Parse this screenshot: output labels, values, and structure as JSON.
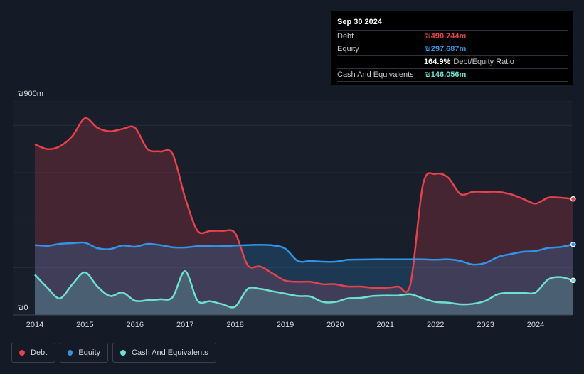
{
  "tooltip": {
    "date": "Sep 30 2024",
    "debt_label": "Debt",
    "debt_value": "₪490.744m",
    "equity_label": "Equity",
    "equity_value": "₪297.687m",
    "ratio_pct": "164.9%",
    "ratio_label": "Debt/Equity Ratio",
    "cash_label": "Cash And Equivalents",
    "cash_value": "₪146.056m"
  },
  "legend": {
    "debt": "Debt",
    "equity": "Equity",
    "cash": "Cash And Equivalents"
  },
  "colors": {
    "debt": "#e5424c",
    "equity": "#3294e6",
    "cash": "#6ee0cf",
    "background": "#151b26"
  },
  "chart_data": {
    "type": "area",
    "title": "",
    "xlabel": "",
    "ylabel": "",
    "ylim": [
      0,
      900
    ],
    "y_tick_labels": [
      "₪0",
      "₪900m"
    ],
    "x_ticks": [
      2014,
      2015,
      2016,
      2017,
      2018,
      2019,
      2020,
      2021,
      2022,
      2023,
      2024
    ],
    "x": [
      2014.0,
      2014.25,
      2014.5,
      2014.75,
      2015.0,
      2015.25,
      2015.5,
      2015.75,
      2016.0,
      2016.25,
      2016.5,
      2016.75,
      2017.0,
      2017.25,
      2017.5,
      2017.75,
      2018.0,
      2018.25,
      2018.5,
      2018.75,
      2019.0,
      2019.25,
      2019.5,
      2019.75,
      2020.0,
      2020.25,
      2020.5,
      2020.75,
      2021.0,
      2021.25,
      2021.5,
      2021.75,
      2022.0,
      2022.25,
      2022.5,
      2022.75,
      2023.0,
      2023.25,
      2023.5,
      2023.75,
      2024.0,
      2024.25,
      2024.5,
      2024.75
    ],
    "series": [
      {
        "name": "Debt",
        "values": [
          720,
          700,
          712,
          755,
          830,
          790,
          775,
          785,
          790,
          700,
          690,
          680,
          495,
          355,
          355,
          355,
          345,
          210,
          205,
          175,
          145,
          140,
          140,
          130,
          130,
          120,
          120,
          115,
          115,
          120,
          130,
          550,
          595,
          580,
          510,
          520,
          520,
          520,
          510,
          490,
          470,
          495,
          495,
          490
        ]
      },
      {
        "name": "Equity",
        "values": [
          295,
          292,
          300,
          303,
          305,
          282,
          278,
          293,
          288,
          300,
          295,
          286,
          285,
          290,
          290,
          290,
          293,
          295,
          296,
          294,
          280,
          228,
          228,
          225,
          225,
          233,
          234,
          235,
          235,
          235,
          235,
          235,
          233,
          235,
          228,
          213,
          220,
          245,
          257,
          267,
          270,
          283,
          287,
          298
        ]
      },
      {
        "name": "Cash And Equivalents",
        "values": [
          170,
          115,
          70,
          130,
          180,
          120,
          80,
          95,
          60,
          62,
          66,
          75,
          185,
          60,
          58,
          45,
          35,
          110,
          110,
          100,
          90,
          80,
          78,
          55,
          55,
          70,
          72,
          80,
          82,
          82,
          88,
          70,
          55,
          52,
          45,
          47,
          60,
          88,
          93,
          93,
          95,
          150,
          160,
          146
        ]
      }
    ],
    "grid": true,
    "legend_position": "bottom-left"
  }
}
